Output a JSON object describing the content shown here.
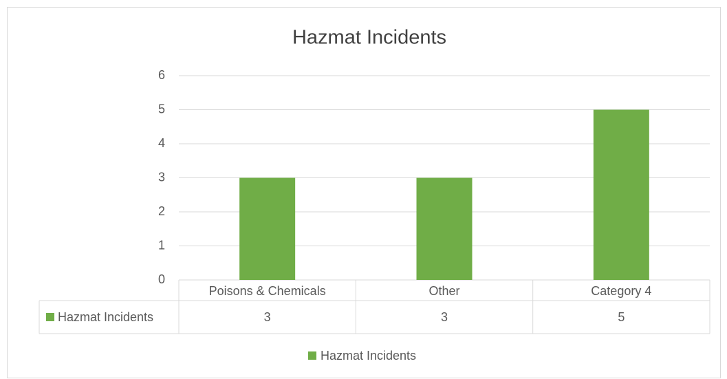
{
  "chart_data": {
    "type": "bar",
    "title": "Hazmat Incidents",
    "categories": [
      "Poisons & Chemicals",
      "Other",
      "Category 4"
    ],
    "series": [
      {
        "name": "Hazmat Incidents",
        "color": "#70ad47",
        "values": [
          3,
          3,
          5
        ]
      }
    ],
    "ylim": [
      0,
      6
    ],
    "yticks": [
      0,
      1,
      2,
      3,
      4,
      5,
      6
    ],
    "grid": true,
    "data_table": true,
    "legend": "bottom"
  }
}
